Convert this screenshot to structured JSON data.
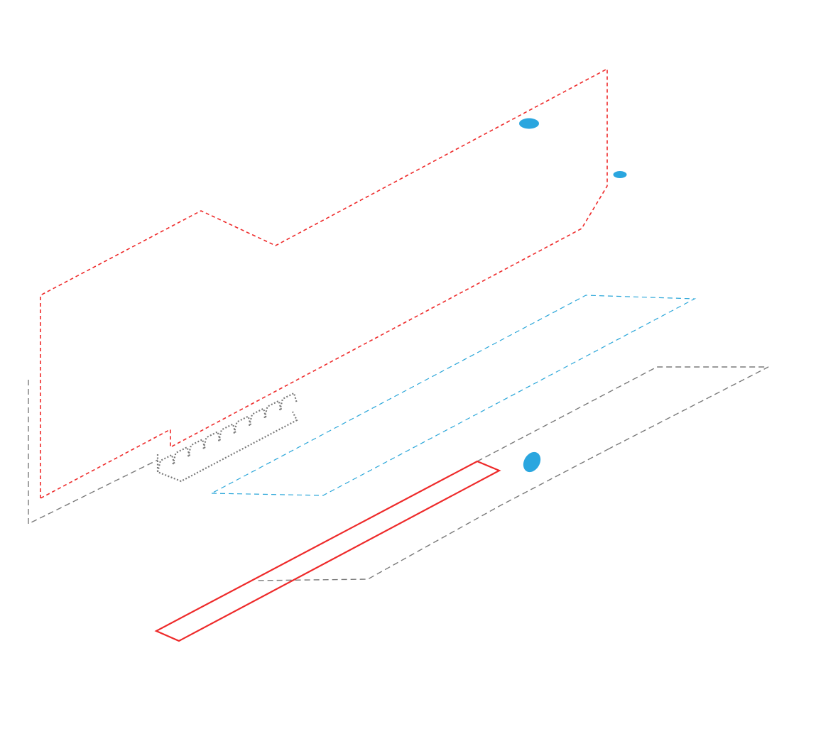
{
  "colors": {
    "board_outline": "#ee2a2a",
    "slot_outline": "#2aa6d9",
    "base_outline": "#7a7a7a",
    "bracket_outline": "#ee2a2a",
    "mount_hole": "#2aa6df",
    "background": "#ffffff"
  },
  "elements": {
    "board_outline": "dashed-red-board",
    "slot_outline": "dashed-blue-slot",
    "base_outline": "dashed-gray-base",
    "edge_connector": "dotted-gray-connector",
    "bracket": "solid-red-bracket",
    "mount_holes": [
      "hole-large",
      "hole-small",
      "hole-lower"
    ]
  }
}
